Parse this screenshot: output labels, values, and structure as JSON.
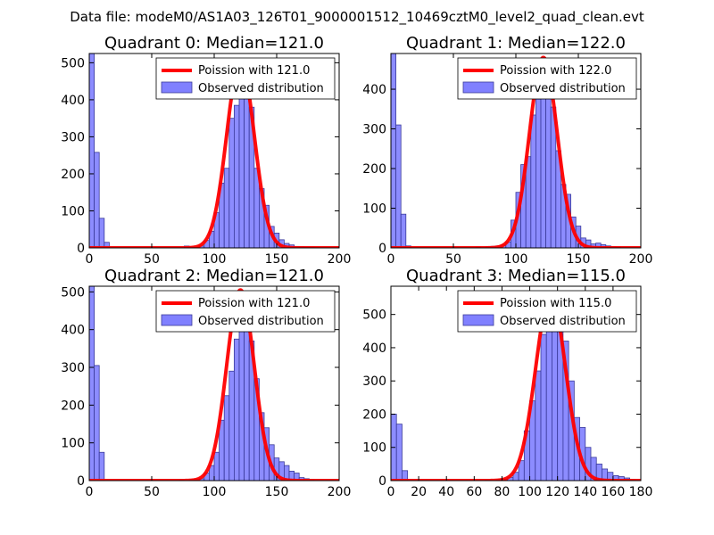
{
  "figure": {
    "suptitle": "Data file: modeM0/AS1A03_126T01_9000001512_10469cztM0_level2_quad_clean.evt",
    "background": "#ffffff"
  },
  "colors": {
    "bar_fill": "#8080ff",
    "bar_edge": "#3a3a9a",
    "poisson_line": "#ff0000"
  },
  "chart_data": [
    {
      "type": "bar",
      "title": "Quadrant 0: Median=121.0",
      "xlim": [
        0,
        200
      ],
      "ylim": [
        0,
        525
      ],
      "xticks": [
        0,
        50,
        100,
        150,
        200
      ],
      "yticks": [
        0,
        100,
        200,
        300,
        400,
        500
      ],
      "bin_width": 4,
      "legend": {
        "line_label": "Poission with 121.0",
        "bar_label": "Observed distribution",
        "placement": "upper-right"
      },
      "poisson_mean": 121.0,
      "poisson_peak": 505,
      "histogram": [
        {
          "x": 0,
          "y": 525
        },
        {
          "x": 4,
          "y": 258
        },
        {
          "x": 8,
          "y": 80
        },
        {
          "x": 12,
          "y": 15
        },
        {
          "x": 76,
          "y": 5
        },
        {
          "x": 80,
          "y": 3
        },
        {
          "x": 84,
          "y": 2
        },
        {
          "x": 88,
          "y": 5
        },
        {
          "x": 92,
          "y": 20
        },
        {
          "x": 96,
          "y": 45
        },
        {
          "x": 100,
          "y": 95
        },
        {
          "x": 104,
          "y": 175
        },
        {
          "x": 108,
          "y": 215
        },
        {
          "x": 112,
          "y": 350
        },
        {
          "x": 116,
          "y": 385
        },
        {
          "x": 120,
          "y": 480
        },
        {
          "x": 124,
          "y": 500
        },
        {
          "x": 128,
          "y": 380
        },
        {
          "x": 132,
          "y": 215
        },
        {
          "x": 136,
          "y": 160
        },
        {
          "x": 140,
          "y": 115
        },
        {
          "x": 144,
          "y": 58
        },
        {
          "x": 148,
          "y": 40
        },
        {
          "x": 152,
          "y": 22
        },
        {
          "x": 156,
          "y": 12
        },
        {
          "x": 160,
          "y": 8
        },
        {
          "x": 164,
          "y": 4
        },
        {
          "x": 168,
          "y": 3
        },
        {
          "x": 172,
          "y": 2
        },
        {
          "x": 176,
          "y": 2
        },
        {
          "x": 180,
          "y": 1
        }
      ]
    },
    {
      "type": "bar",
      "title": "Quadrant 1: Median=122.0",
      "xlim": [
        0,
        200
      ],
      "ylim": [
        0,
        490
      ],
      "xticks": [
        0,
        50,
        100,
        150,
        200
      ],
      "yticks": [
        0,
        100,
        200,
        300,
        400
      ],
      "bin_width": 4,
      "legend": {
        "line_label": "Poission with 122.0",
        "bar_label": "Observed distribution",
        "placement": "upper-right"
      },
      "poisson_mean": 122.0,
      "poisson_peak": 480,
      "histogram": [
        {
          "x": 0,
          "y": 490
        },
        {
          "x": 4,
          "y": 310
        },
        {
          "x": 8,
          "y": 85
        },
        {
          "x": 12,
          "y": 5
        },
        {
          "x": 68,
          "y": 2
        },
        {
          "x": 76,
          "y": 3
        },
        {
          "x": 80,
          "y": 4
        },
        {
          "x": 84,
          "y": 5
        },
        {
          "x": 88,
          "y": 8
        },
        {
          "x": 92,
          "y": 15
        },
        {
          "x": 96,
          "y": 70
        },
        {
          "x": 100,
          "y": 140
        },
        {
          "x": 104,
          "y": 210
        },
        {
          "x": 108,
          "y": 230
        },
        {
          "x": 112,
          "y": 335
        },
        {
          "x": 116,
          "y": 375
        },
        {
          "x": 120,
          "y": 455
        },
        {
          "x": 124,
          "y": 460
        },
        {
          "x": 128,
          "y": 355
        },
        {
          "x": 132,
          "y": 245
        },
        {
          "x": 136,
          "y": 160
        },
        {
          "x": 140,
          "y": 135
        },
        {
          "x": 144,
          "y": 78
        },
        {
          "x": 148,
          "y": 55
        },
        {
          "x": 152,
          "y": 25
        },
        {
          "x": 156,
          "y": 20
        },
        {
          "x": 160,
          "y": 10
        },
        {
          "x": 164,
          "y": 12
        },
        {
          "x": 168,
          "y": 8
        },
        {
          "x": 172,
          "y": 5
        },
        {
          "x": 176,
          "y": 3
        },
        {
          "x": 180,
          "y": 2
        }
      ]
    },
    {
      "type": "bar",
      "title": "Quadrant 2: Median=121.0",
      "xlim": [
        0,
        200
      ],
      "ylim": [
        0,
        515
      ],
      "xticks": [
        0,
        50,
        100,
        150,
        200
      ],
      "yticks": [
        0,
        100,
        200,
        300,
        400,
        500
      ],
      "bin_width": 4,
      "legend": {
        "line_label": "Poission with 121.0",
        "bar_label": "Observed distribution",
        "placement": "upper-right"
      },
      "poisson_mean": 121.0,
      "poisson_peak": 505,
      "histogram": [
        {
          "x": 0,
          "y": 515
        },
        {
          "x": 4,
          "y": 305
        },
        {
          "x": 8,
          "y": 75
        },
        {
          "x": 72,
          "y": 2
        },
        {
          "x": 80,
          "y": 3
        },
        {
          "x": 84,
          "y": 2
        },
        {
          "x": 88,
          "y": 5
        },
        {
          "x": 92,
          "y": 20
        },
        {
          "x": 96,
          "y": 40
        },
        {
          "x": 100,
          "y": 75
        },
        {
          "x": 104,
          "y": 160
        },
        {
          "x": 108,
          "y": 225
        },
        {
          "x": 112,
          "y": 290
        },
        {
          "x": 116,
          "y": 375
        },
        {
          "x": 120,
          "y": 455
        },
        {
          "x": 124,
          "y": 475
        },
        {
          "x": 128,
          "y": 370
        },
        {
          "x": 132,
          "y": 270
        },
        {
          "x": 136,
          "y": 180
        },
        {
          "x": 140,
          "y": 140
        },
        {
          "x": 144,
          "y": 95
        },
        {
          "x": 148,
          "y": 60
        },
        {
          "x": 152,
          "y": 50
        },
        {
          "x": 156,
          "y": 40
        },
        {
          "x": 160,
          "y": 25
        },
        {
          "x": 164,
          "y": 20
        },
        {
          "x": 168,
          "y": 8
        },
        {
          "x": 172,
          "y": 5
        },
        {
          "x": 176,
          "y": 3
        }
      ]
    },
    {
      "type": "bar",
      "title": "Quadrant 3: Median=115.0",
      "xlim": [
        0,
        180
      ],
      "ylim": [
        0,
        585
      ],
      "xticks": [
        0,
        20,
        40,
        60,
        80,
        100,
        120,
        140,
        160,
        180
      ],
      "yticks": [
        0,
        100,
        200,
        300,
        400,
        500
      ],
      "bin_width": 4,
      "legend": {
        "line_label": "Poission with 115.0",
        "bar_label": "Observed distribution",
        "placement": "upper-right"
      },
      "poisson_mean": 115.0,
      "poisson_peak": 560,
      "histogram": [
        {
          "x": 0,
          "y": 200
        },
        {
          "x": 4,
          "y": 170
        },
        {
          "x": 8,
          "y": 30
        },
        {
          "x": 68,
          "y": 2
        },
        {
          "x": 76,
          "y": 3
        },
        {
          "x": 80,
          "y": 5
        },
        {
          "x": 84,
          "y": 10
        },
        {
          "x": 88,
          "y": 25
        },
        {
          "x": 92,
          "y": 60
        },
        {
          "x": 96,
          "y": 150
        },
        {
          "x": 100,
          "y": 240
        },
        {
          "x": 104,
          "y": 330
        },
        {
          "x": 108,
          "y": 440
        },
        {
          "x": 112,
          "y": 510
        },
        {
          "x": 116,
          "y": 550
        },
        {
          "x": 120,
          "y": 450
        },
        {
          "x": 124,
          "y": 420
        },
        {
          "x": 128,
          "y": 300
        },
        {
          "x": 132,
          "y": 190
        },
        {
          "x": 136,
          "y": 160
        },
        {
          "x": 140,
          "y": 100
        },
        {
          "x": 144,
          "y": 70
        },
        {
          "x": 148,
          "y": 50
        },
        {
          "x": 152,
          "y": 35
        },
        {
          "x": 156,
          "y": 25
        },
        {
          "x": 160,
          "y": 15
        },
        {
          "x": 164,
          "y": 12
        },
        {
          "x": 168,
          "y": 8
        },
        {
          "x": 172,
          "y": 4
        }
      ]
    }
  ]
}
